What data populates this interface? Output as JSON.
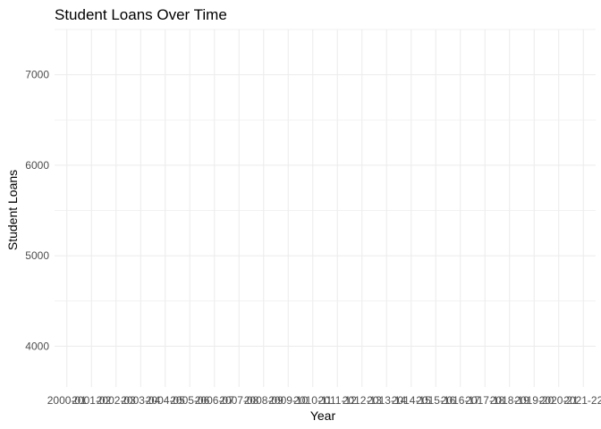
{
  "chart_data": {
    "type": "line",
    "title": "Student Loans Over Time",
    "xlabel": "Year",
    "ylabel": "Student Loans",
    "categories": [
      "2000-01",
      "2001-02",
      "2002-03",
      "2003-04",
      "2004-05",
      "2005-06",
      "2006-07",
      "2007-08",
      "2008-09",
      "2009-10",
      "2010-11",
      "2011-12",
      "2012-13",
      "2013-14",
      "2014-15",
      "2015-16",
      "2016-17",
      "2017-18",
      "2018-19",
      "2019-20",
      "2020-21",
      "2021-22"
    ],
    "yticks": [
      4000,
      5000,
      6000,
      7000
    ],
    "ylim": [
      3550,
      7500
    ],
    "series": [],
    "grid": true,
    "legend": "none"
  }
}
